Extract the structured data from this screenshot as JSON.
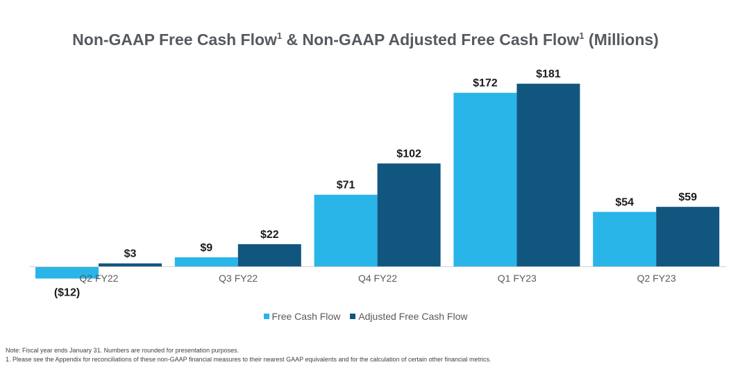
{
  "title": {
    "part1": "Non-GAAP Free Cash Flow",
    "sup1": "1",
    "part2": " & Non-GAAP Adjusted Free Cash Flow",
    "sup2": "1",
    "part3": " (Millions)"
  },
  "chart_data": {
    "type": "bar",
    "title": "Non-GAAP Free Cash Flow¹ & Non-GAAP Adjusted Free Cash Flow¹ (Millions)",
    "xlabel": "",
    "ylabel": "",
    "categories": [
      "Q2 FY22",
      "Q3 FY22",
      "Q4 FY22",
      "Q1 FY23",
      "Q2 FY23"
    ],
    "series": [
      {
        "name": "Free Cash Flow",
        "color": "#29b5e8",
        "values": [
          -12,
          9,
          71,
          172,
          54
        ],
        "labels": [
          "($12)",
          "$9",
          "$71",
          "$172",
          "$54"
        ]
      },
      {
        "name": "Adjusted Free Cash Flow",
        "color": "#11567f",
        "values": [
          3,
          22,
          102,
          181,
          59
        ],
        "labels": [
          "$3",
          "$22",
          "$102",
          "$181",
          "$59"
        ]
      }
    ],
    "legend_position": "bottom",
    "grid": false
  },
  "notes": {
    "line1": "Note: Fiscal year ends January 31. Numbers are rounded for presentation purposes.",
    "line2": "1.  Please see the Appendix for reconciliations of these non-GAAP financial measures to their nearest GAAP equivalents and for the calculation of certain other financial metrics."
  }
}
